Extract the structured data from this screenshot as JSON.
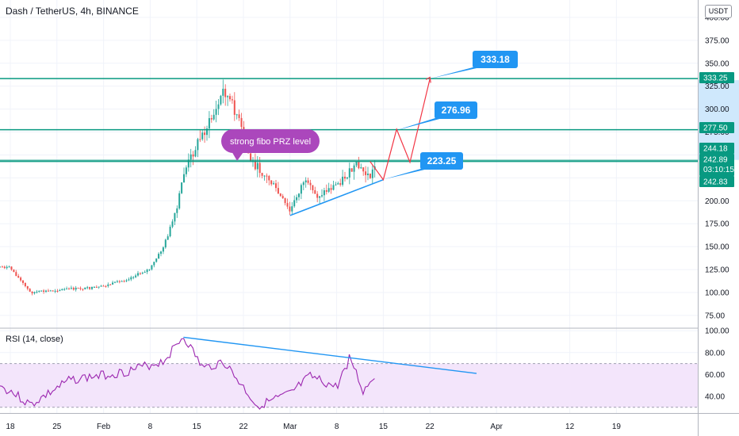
{
  "header": {
    "title": "Dash / TetherUS, 4h, BINANCE",
    "currency": "USDT",
    "rsi_title": "RSI (14, close)"
  },
  "colors": {
    "up": "#26a69a",
    "down": "#ef5350",
    "level_line": "#089981",
    "trendline": "#2196f3",
    "projection": "#f23645",
    "callout": "#2196f3",
    "note": "#ab47bc",
    "rsi_line": "#9c27b0",
    "rsi_band": "#f3e5fb",
    "grid": "#f0f3fa"
  },
  "chart_data": [
    {
      "type": "candlestick",
      "title": "Dash / TetherUS, 4h, BINANCE",
      "x_ticks": [
        "18",
        "25",
        "Feb",
        "8",
        "15",
        "22",
        "Mar",
        "8",
        "15",
        "22",
        "Apr",
        "12",
        "19"
      ],
      "y_ticks": [
        75,
        100,
        125,
        150,
        175,
        200,
        225,
        250,
        275,
        300,
        325,
        350,
        375,
        400
      ],
      "y_tick_labels": [
        "75.00",
        "100.00",
        "125.00",
        "150.00",
        "175.00",
        "200.00",
        "225.00",
        "250.00",
        "275.00",
        "300.00",
        "325.00",
        "350.00",
        "375.00",
        "400.00"
      ],
      "ylim": [
        63,
        418
      ],
      "grid": true,
      "horizontal_levels": [
        333.25,
        277.5,
        244.18,
        242.89,
        242.83
      ],
      "price_tags": [
        {
          "label": "333.25",
          "value": 333.25
        },
        {
          "label": "277.50",
          "value": 277.5
        },
        {
          "label": "244.18",
          "value": 244.18
        },
        {
          "label": "242.89",
          "value": 242.89,
          "sub": "03:10:15"
        },
        {
          "label": "242.83",
          "value": 242.83
        }
      ],
      "path_summary": [
        {
          "date": "Jan 14",
          "price": 130
        },
        {
          "date": "Jan 18",
          "price": 127
        },
        {
          "date": "Jan 21",
          "price": 100
        },
        {
          "date": "Jan 27",
          "price": 104
        },
        {
          "date": "Jan 31",
          "price": 105
        },
        {
          "date": "Feb 4",
          "price": 113
        },
        {
          "date": "Feb 8",
          "price": 126
        },
        {
          "date": "Feb 10",
          "price": 150
        },
        {
          "date": "Feb 12",
          "price": 190
        },
        {
          "date": "Feb 13",
          "price": 230
        },
        {
          "date": "Feb 15",
          "price": 262
        },
        {
          "date": "Feb 18",
          "price": 300
        },
        {
          "date": "Feb 19",
          "price": 322
        },
        {
          "date": "Feb 21",
          "price": 295
        },
        {
          "date": "Feb 23",
          "price": 245
        },
        {
          "date": "Feb 26",
          "price": 222
        },
        {
          "date": "Mar 1",
          "price": 188
        },
        {
          "date": "Mar 3",
          "price": 222
        },
        {
          "date": "Mar 5",
          "price": 205
        },
        {
          "date": "Mar 8",
          "price": 218
        },
        {
          "date": "Mar 11",
          "price": 238
        },
        {
          "date": "Mar 13",
          "price": 226
        },
        {
          "date": "Mar 14",
          "price": 242.89
        }
      ],
      "annotations": {
        "note": "strong fibo PRZ level",
        "callouts": [
          {
            "label": "333.18",
            "date": "Mar 22",
            "price": 333.18
          },
          {
            "label": "276.96",
            "date": "Mar 17",
            "price": 276.96
          },
          {
            "label": "223.25",
            "date": "Mar 15",
            "price": 223.25
          }
        ],
        "trendline": [
          {
            "date": "Mar 1",
            "price": 184
          },
          {
            "date": "Mar 15",
            "price": 223
          }
        ],
        "projection": [
          {
            "date": "Mar 13",
            "price": 243
          },
          {
            "date": "Mar 15",
            "price": 223
          },
          {
            "date": "Mar 17",
            "price": 278
          },
          {
            "date": "Mar 19",
            "price": 242
          },
          {
            "date": "Mar 22",
            "price": 333
          }
        ]
      }
    },
    {
      "type": "line",
      "title": "RSI (14, close)",
      "y_ticks": [
        40,
        60,
        80,
        100
      ],
      "y_tick_labels": [
        "40.00",
        "60.00",
        "80.00",
        "100.00"
      ],
      "ylim": [
        30,
        105
      ],
      "band": [
        30,
        70
      ],
      "series": [
        {
          "name": "RSI (14, close)",
          "values_summary": [
            {
              "date": "Jan 14",
              "value": 55
            },
            {
              "date": "Jan 18",
              "value": 45
            },
            {
              "date": "Jan 21",
              "value": 32
            },
            {
              "date": "Jan 27",
              "value": 55
            },
            {
              "date": "Feb 4",
              "value": 62
            },
            {
              "date": "Feb 10",
              "value": 72
            },
            {
              "date": "Feb 13",
              "value": 95
            },
            {
              "date": "Feb 16",
              "value": 65
            },
            {
              "date": "Feb 19",
              "value": 72
            },
            {
              "date": "Feb 23",
              "value": 40
            },
            {
              "date": "Feb 24",
              "value": 31
            },
            {
              "date": "Mar 1",
              "value": 42
            },
            {
              "date": "Mar 4",
              "value": 58
            },
            {
              "date": "Mar 8",
              "value": 48
            },
            {
              "date": "Mar 10",
              "value": 76
            },
            {
              "date": "Mar 12",
              "value": 44
            },
            {
              "date": "Mar 14",
              "value": 62
            }
          ]
        }
      ],
      "divergence_line": [
        {
          "date": "Feb 13",
          "value": 94
        },
        {
          "date": "Mar 29",
          "value": 61
        }
      ]
    }
  ]
}
